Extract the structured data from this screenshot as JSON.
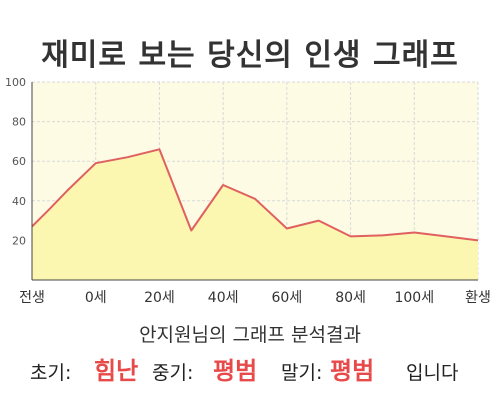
{
  "title": "재미로 보는 당신의 인생 그래프",
  "subtitle": "안지원님의 그래프 분석결과",
  "summary": {
    "early_label": "초기:",
    "early_value": "힘난",
    "middle_label": "중기:",
    "middle_value": "평범",
    "late_label": "말기:",
    "late_value": "평범",
    "ending": "입니다"
  },
  "colors": {
    "plot_background": "#fdfbe4",
    "area_fill": "#fcf7b0",
    "line": "#e06060",
    "grid": "#d9d9d9",
    "result_text": "#e84a4a"
  },
  "chart_data": {
    "type": "area",
    "title": "",
    "xlabel": "",
    "ylabel": "",
    "ylim": [
      0,
      100
    ],
    "yticks": [
      20,
      40,
      60,
      80,
      100
    ],
    "xticks": [
      "전생",
      "0세",
      "20세",
      "40세",
      "60세",
      "80세",
      "100세",
      "환생"
    ],
    "grid": true,
    "legend": "none",
    "series": [
      {
        "points": [
          [
            0,
            27
          ],
          [
            0.25,
            35
          ],
          [
            0.55,
            45
          ],
          [
            1,
            59
          ],
          [
            1.5,
            62
          ],
          [
            2,
            66
          ],
          [
            2.5,
            25
          ],
          [
            3,
            48
          ],
          [
            3.5,
            41
          ],
          [
            4,
            26
          ],
          [
            4.5,
            30
          ],
          [
            5,
            22
          ],
          [
            5.5,
            22.5
          ],
          [
            6,
            24
          ],
          [
            6.5,
            22
          ],
          [
            7,
            20
          ]
        ]
      }
    ]
  }
}
